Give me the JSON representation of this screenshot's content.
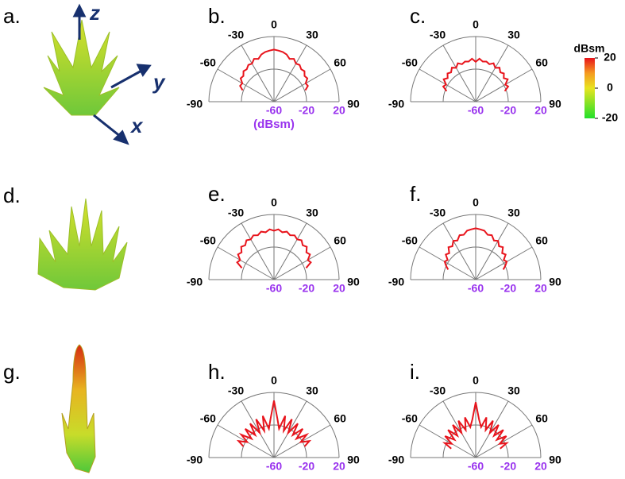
{
  "chart_data": [
    {
      "type": "polar",
      "panel": "b.",
      "r_label": "(dBsm)",
      "color": "#e8141c",
      "x": [
        -70,
        -65,
        -60,
        -55,
        -50,
        -45,
        -40,
        -35,
        -30,
        -25,
        -20,
        -15,
        -10,
        -5,
        0,
        5,
        10,
        15,
        20,
        25,
        30,
        35,
        40,
        45,
        50,
        55,
        60,
        65,
        70
      ],
      "values": [
        -19,
        -14,
        -15,
        -10,
        -11,
        -7,
        -8,
        -5,
        -6,
        -2,
        -4,
        0,
        2,
        3,
        4,
        3,
        2,
        0,
        -4,
        -2,
        -6,
        -5,
        -8,
        -7,
        -11,
        -10,
        -15,
        -14,
        -19
      ],
      "rlim": [
        -60,
        20
      ],
      "rticks": [
        -60,
        -20,
        20
      ],
      "xlim": [
        -90,
        90
      ],
      "xticks": [
        -90,
        -60,
        -30,
        0,
        30,
        60,
        90
      ]
    },
    {
      "type": "polar",
      "panel": "c.",
      "color": "#e8141c",
      "x": [
        -70,
        -65,
        -60,
        -55,
        -50,
        -45,
        -40,
        -35,
        -30,
        -25,
        -20,
        -15,
        -10,
        -5,
        0,
        5,
        10,
        15,
        20,
        25,
        30,
        35,
        40,
        45,
        50,
        55,
        60,
        65,
        70
      ],
      "values": [
        -22,
        -16,
        -18,
        -12,
        -15,
        -11,
        -13,
        -9,
        -12,
        -8,
        -11,
        -9,
        -10,
        -7,
        -11,
        -7,
        -10,
        -9,
        -11,
        -8,
        -12,
        -9,
        -13,
        -11,
        -15,
        -12,
        -18,
        -16,
        -22
      ],
      "rlim": [
        -60,
        20
      ],
      "rticks": [
        -60,
        -20,
        20
      ],
      "xlim": [
        -90,
        90
      ],
      "xticks": [
        -90,
        -60,
        -30,
        0,
        30,
        60,
        90
      ]
    },
    {
      "type": "polar",
      "panel": "e.",
      "color": "#e8141c",
      "x": [
        -70,
        -65,
        -60,
        -55,
        -50,
        -45,
        -40,
        -35,
        -30,
        -25,
        -20,
        -15,
        -10,
        -5,
        0,
        5,
        10,
        15,
        20,
        25,
        30,
        35,
        40,
        45,
        50,
        55,
        60,
        65,
        70
      ],
      "values": [
        -18,
        -10,
        -12,
        -6,
        -8,
        -3,
        -5,
        -1,
        -3,
        0,
        -2,
        1,
        -1,
        2,
        0,
        2,
        -1,
        1,
        -2,
        0,
        -3,
        -1,
        -5,
        -3,
        -8,
        -6,
        -12,
        -10,
        -18
      ],
      "rlim": [
        -60,
        20
      ],
      "rticks": [
        -60,
        -20,
        20
      ],
      "xlim": [
        -90,
        90
      ],
      "xticks": [
        -90,
        -60,
        -30,
        0,
        30,
        60,
        90
      ]
    },
    {
      "type": "polar",
      "panel": "f.",
      "color": "#e8141c",
      "x": [
        -70,
        -65,
        -60,
        -55,
        -50,
        -45,
        -40,
        -35,
        -30,
        -25,
        -20,
        -15,
        -10,
        -5,
        0,
        5,
        10,
        15,
        20,
        25,
        30,
        35,
        40,
        45,
        50,
        55,
        60,
        65,
        70
      ],
      "values": [
        -24,
        -20,
        -16,
        -18,
        -12,
        -14,
        -8,
        -10,
        -5,
        -7,
        -2,
        -3,
        1,
        2,
        3,
        2,
        1,
        -3,
        -2,
        -7,
        -5,
        -10,
        -8,
        -14,
        -12,
        -18,
        -16,
        -20,
        -24
      ],
      "rlim": [
        -60,
        20
      ],
      "rticks": [
        -60,
        -20,
        20
      ],
      "xlim": [
        -90,
        90
      ],
      "xticks": [
        -90,
        -60,
        -30,
        0,
        30,
        60,
        90
      ]
    },
    {
      "type": "polar",
      "panel": "h.",
      "color": "#e8141c",
      "x": [
        -70,
        -65,
        -60,
        -55,
        -50,
        -45,
        -40,
        -35,
        -30,
        -25,
        -20,
        -15,
        -10,
        -5,
        0,
        5,
        10,
        15,
        20,
        25,
        30,
        35,
        40,
        45,
        50,
        55,
        60,
        65,
        70
      ],
      "values": [
        -20,
        -12,
        -22,
        -11,
        -24,
        -10,
        -24,
        -9,
        -25,
        -8,
        -25,
        -7,
        -24,
        -12,
        10,
        -12,
        -24,
        -7,
        -25,
        -8,
        -25,
        -9,
        -24,
        -10,
        -24,
        -11,
        -22,
        -12,
        -20
      ],
      "rlim": [
        -60,
        20
      ],
      "rticks": [
        -60,
        -20,
        20
      ],
      "xlim": [
        -90,
        90
      ],
      "xticks": [
        -90,
        -60,
        -30,
        0,
        30,
        60,
        90
      ]
    },
    {
      "type": "polar",
      "panel": "i.",
      "color": "#e8141c",
      "x": [
        -70,
        -65,
        -60,
        -55,
        -50,
        -45,
        -40,
        -35,
        -30,
        -25,
        -20,
        -15,
        -10,
        -5,
        0,
        5,
        10,
        15,
        20,
        25,
        30,
        35,
        40,
        45,
        50,
        55,
        60,
        65,
        70
      ],
      "values": [
        -28,
        -18,
        -26,
        -14,
        -26,
        -12,
        -25,
        -11,
        -25,
        -10,
        -24,
        -9,
        -22,
        -13,
        8,
        -13,
        -22,
        -9,
        -24,
        -10,
        -25,
        -11,
        -25,
        -12,
        -26,
        -14,
        -26,
        -18,
        -28
      ],
      "rlim": [
        -60,
        20
      ],
      "rticks": [
        -60,
        -20,
        20
      ],
      "xlim": [
        -90,
        90
      ],
      "xticks": [
        -90,
        -60,
        -30,
        0,
        30,
        60,
        90
      ]
    }
  ],
  "panels": [
    "a.",
    "d.",
    "g."
  ],
  "axis_names": [
    "z",
    "y",
    "x"
  ],
  "colorbar": {
    "title": "dBsm",
    "lim": [
      -20,
      20
    ],
    "ticks": [
      20,
      0,
      -20
    ]
  }
}
